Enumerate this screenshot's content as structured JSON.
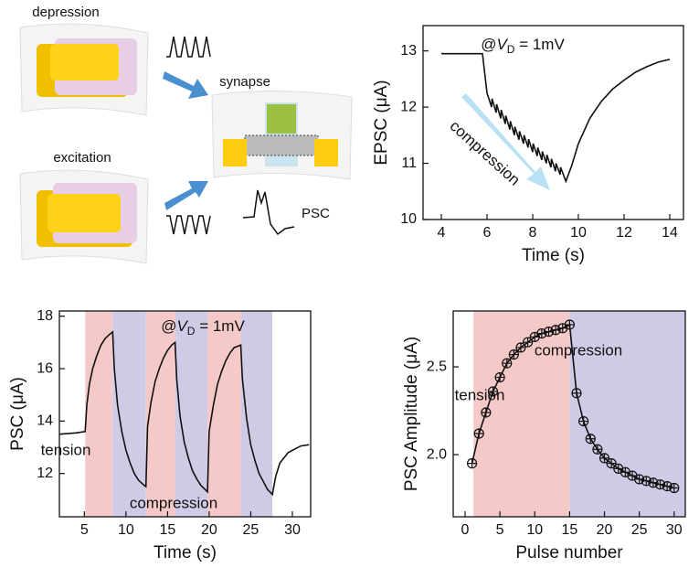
{
  "diagram": {
    "labels": [
      "depression",
      "excitation",
      "synapse",
      "PSC"
    ]
  },
  "chart_data": [
    {
      "type": "line",
      "xlabel": "Time (s)",
      "ylabel": "EPSC (μA)",
      "color": "#111111",
      "xlim": [
        3.2,
        14.6
      ],
      "ylim": [
        10,
        13.45
      ],
      "xticks": [
        4,
        6,
        8,
        10,
        12,
        14
      ],
      "yticks": [
        10,
        11,
        12,
        13
      ],
      "x": [
        4,
        5.8,
        5.9,
        6.0,
        6.2,
        6.22,
        6.4,
        6.42,
        6.6,
        6.62,
        6.8,
        6.82,
        7.0,
        7.02,
        7.2,
        7.22,
        7.4,
        7.42,
        7.6,
        7.62,
        7.8,
        7.82,
        8.0,
        8.02,
        8.2,
        8.22,
        8.4,
        8.42,
        8.6,
        8.62,
        8.8,
        8.82,
        9.0,
        9.02,
        9.2,
        9.22,
        9.45,
        9.7,
        10,
        10.5,
        11,
        11.5,
        12,
        12.5,
        13,
        13.5,
        14
      ],
      "values": [
        12.95,
        12.95,
        12.6,
        12.25,
        12.0,
        12.15,
        11.9,
        12.05,
        11.8,
        11.95,
        11.7,
        11.85,
        11.6,
        11.75,
        11.5,
        11.65,
        11.42,
        11.57,
        11.35,
        11.5,
        11.28,
        11.43,
        11.2,
        11.35,
        11.13,
        11.28,
        11.06,
        11.21,
        11.0,
        11.15,
        10.93,
        11.08,
        10.86,
        11.0,
        10.8,
        10.93,
        10.68,
        10.95,
        11.35,
        11.8,
        12.1,
        12.32,
        12.48,
        12.62,
        12.72,
        12.8,
        12.85
      ],
      "annotations": [
        {
          "parts": [
            "@",
            "V",
            "D",
            " = 1mV"
          ],
          "color": "#111111"
        },
        {
          "text": "compression",
          "color": "#111111"
        }
      ]
    },
    {
      "type": "line",
      "xlabel": "Time (s)",
      "ylabel": "PSC (μA)",
      "color": "#111111",
      "xlim": [
        2,
        32.2
      ],
      "ylim": [
        10.35,
        18.2
      ],
      "xticks": [
        5,
        10,
        15,
        20,
        25,
        30
      ],
      "yticks": [
        12,
        14,
        16,
        18
      ],
      "bands": [
        {
          "x0": 5.1,
          "x1": 8.4,
          "color": "#f6c9c9"
        },
        {
          "x0": 8.4,
          "x1": 12.4,
          "color": "#cfcbe6"
        },
        {
          "x0": 12.4,
          "x1": 15.9,
          "color": "#f6c9c9"
        },
        {
          "x0": 15.9,
          "x1": 19.8,
          "color": "#cfcbe6"
        },
        {
          "x0": 19.8,
          "x1": 23.8,
          "color": "#f6c9c9"
        },
        {
          "x0": 23.8,
          "x1": 27.6,
          "color": "#cfcbe6"
        }
      ],
      "x": [
        2,
        4,
        5.1,
        5.3,
        5.6,
        6,
        6.5,
        7,
        7.5,
        8,
        8.4,
        8.6,
        9,
        9.5,
        10,
        10.5,
        11,
        11.5,
        12,
        12.4,
        12.6,
        13,
        13.5,
        14,
        14.5,
        15,
        15.5,
        15.9,
        16.1,
        16.5,
        17,
        17.5,
        18,
        18.5,
        19,
        19.8,
        20,
        20.5,
        21,
        21.5,
        22,
        22.5,
        23,
        23.8,
        24,
        24.5,
        25,
        25.5,
        26,
        26.5,
        27,
        27.6,
        28,
        28.5,
        29.5,
        31,
        32
      ],
      "values": [
        13.5,
        13.55,
        13.6,
        14.6,
        15.4,
        16.0,
        16.5,
        16.9,
        17.15,
        17.3,
        17.4,
        16.0,
        14.6,
        13.6,
        12.9,
        12.4,
        12.0,
        11.75,
        11.6,
        11.5,
        13.8,
        14.7,
        15.5,
        16.0,
        16.4,
        16.7,
        16.9,
        17.0,
        15.6,
        14.2,
        13.2,
        12.6,
        12.1,
        11.8,
        11.55,
        11.3,
        13.6,
        14.6,
        15.4,
        15.9,
        16.3,
        16.6,
        16.8,
        16.9,
        15.6,
        14.1,
        13.1,
        12.5,
        12.0,
        11.7,
        11.4,
        11.2,
        11.9,
        12.4,
        12.8,
        13.05,
        13.1
      ],
      "annotations": [
        {
          "parts": [
            "@",
            "V",
            "D",
            " = 1mV"
          ],
          "color": "#111111"
        },
        {
          "text": "tension",
          "color": "#e0302f"
        },
        {
          "text": "compression",
          "color": "#3c3ca8"
        }
      ]
    },
    {
      "type": "line",
      "marker": "circle-cross",
      "xlabel": "Pulse number",
      "ylabel": "PSC Amplitude (μA)",
      "color": "#111111",
      "xlim": [
        -1.7,
        31.6
      ],
      "ylim": [
        1.646,
        2.818
      ],
      "xticks": [
        0,
        5,
        10,
        15,
        20,
        25,
        30
      ],
      "yticks": [
        {
          "value": 2,
          "label": "2.0"
        },
        {
          "value": 2.5,
          "label": "2.5"
        }
      ],
      "bands": [
        {
          "x0": 1.2,
          "x1": 15,
          "color": "#f6c9c9"
        },
        {
          "x0": 15,
          "x1": 31.6,
          "color": "#cfcbe6"
        }
      ],
      "x": [
        1,
        2,
        3,
        4,
        5,
        6,
        7,
        8,
        9,
        10,
        11,
        12,
        13,
        14,
        15,
        16,
        17,
        18,
        19,
        20,
        21,
        22,
        23,
        24,
        25,
        26,
        27,
        28,
        29,
        30
      ],
      "values": [
        1.95,
        2.12,
        2.24,
        2.36,
        2.44,
        2.52,
        2.57,
        2.61,
        2.64,
        2.67,
        2.69,
        2.7,
        2.71,
        2.72,
        2.74,
        2.35,
        2.19,
        2.09,
        2.03,
        1.98,
        1.95,
        1.92,
        1.9,
        1.88,
        1.86,
        1.85,
        1.84,
        1.83,
        1.82,
        1.81
      ],
      "annotations": [
        {
          "text": "compression",
          "color": "#3c3ca8"
        },
        {
          "text": "tension",
          "color": "#e0302f"
        }
      ]
    }
  ]
}
